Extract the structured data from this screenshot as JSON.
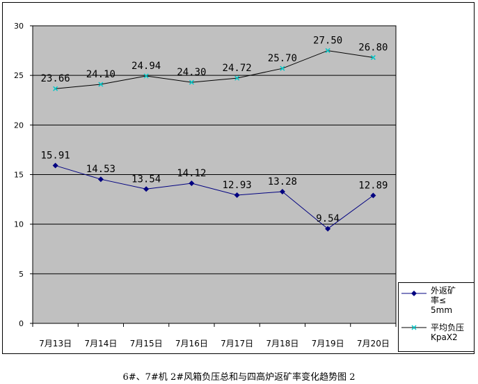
{
  "chart_data": {
    "type": "line",
    "title": "6#、7#机 2#风箱负压总和与四高炉返矿率变化趋势图 2",
    "categories": [
      "7月13日",
      "7月14日",
      "7月15日",
      "7月16日",
      "7月17日",
      "7月18日",
      "7月19日",
      "7月20日"
    ],
    "series": [
      {
        "name": "外返矿率≤5mm",
        "color": "#000080",
        "marker": "diamond",
        "values": [
          15.91,
          14.53,
          13.54,
          14.12,
          12.93,
          13.28,
          9.54,
          12.89
        ],
        "labels": [
          "15.91",
          "14.53",
          "13.54",
          "14.12",
          "12.93",
          "13.28",
          "9.54",
          "12.89"
        ]
      },
      {
        "name": "平均负压KpaX2",
        "color": "#00c8c8",
        "marker": "x",
        "values": [
          23.66,
          24.1,
          24.94,
          24.3,
          24.72,
          25.7,
          27.5,
          26.8
        ],
        "labels": [
          "23.66",
          "24.10",
          "24.94",
          "24.30",
          "24.72",
          "25.70",
          "27.50",
          "26.80"
        ]
      }
    ],
    "ylim": [
      0,
      30
    ],
    "yticks": [
      0,
      5,
      10,
      15,
      20,
      25,
      30
    ],
    "ytick_labels": [
      "0",
      "5",
      "10",
      "15",
      "20",
      "25",
      "30"
    ],
    "grid": "horizontal",
    "plot_background": "#c0c0c0",
    "legend_position": "bottom-right"
  },
  "legend": {
    "item1": "外返矿\n率≤\n5mm",
    "item2": "平均负压\nKpaX2"
  }
}
